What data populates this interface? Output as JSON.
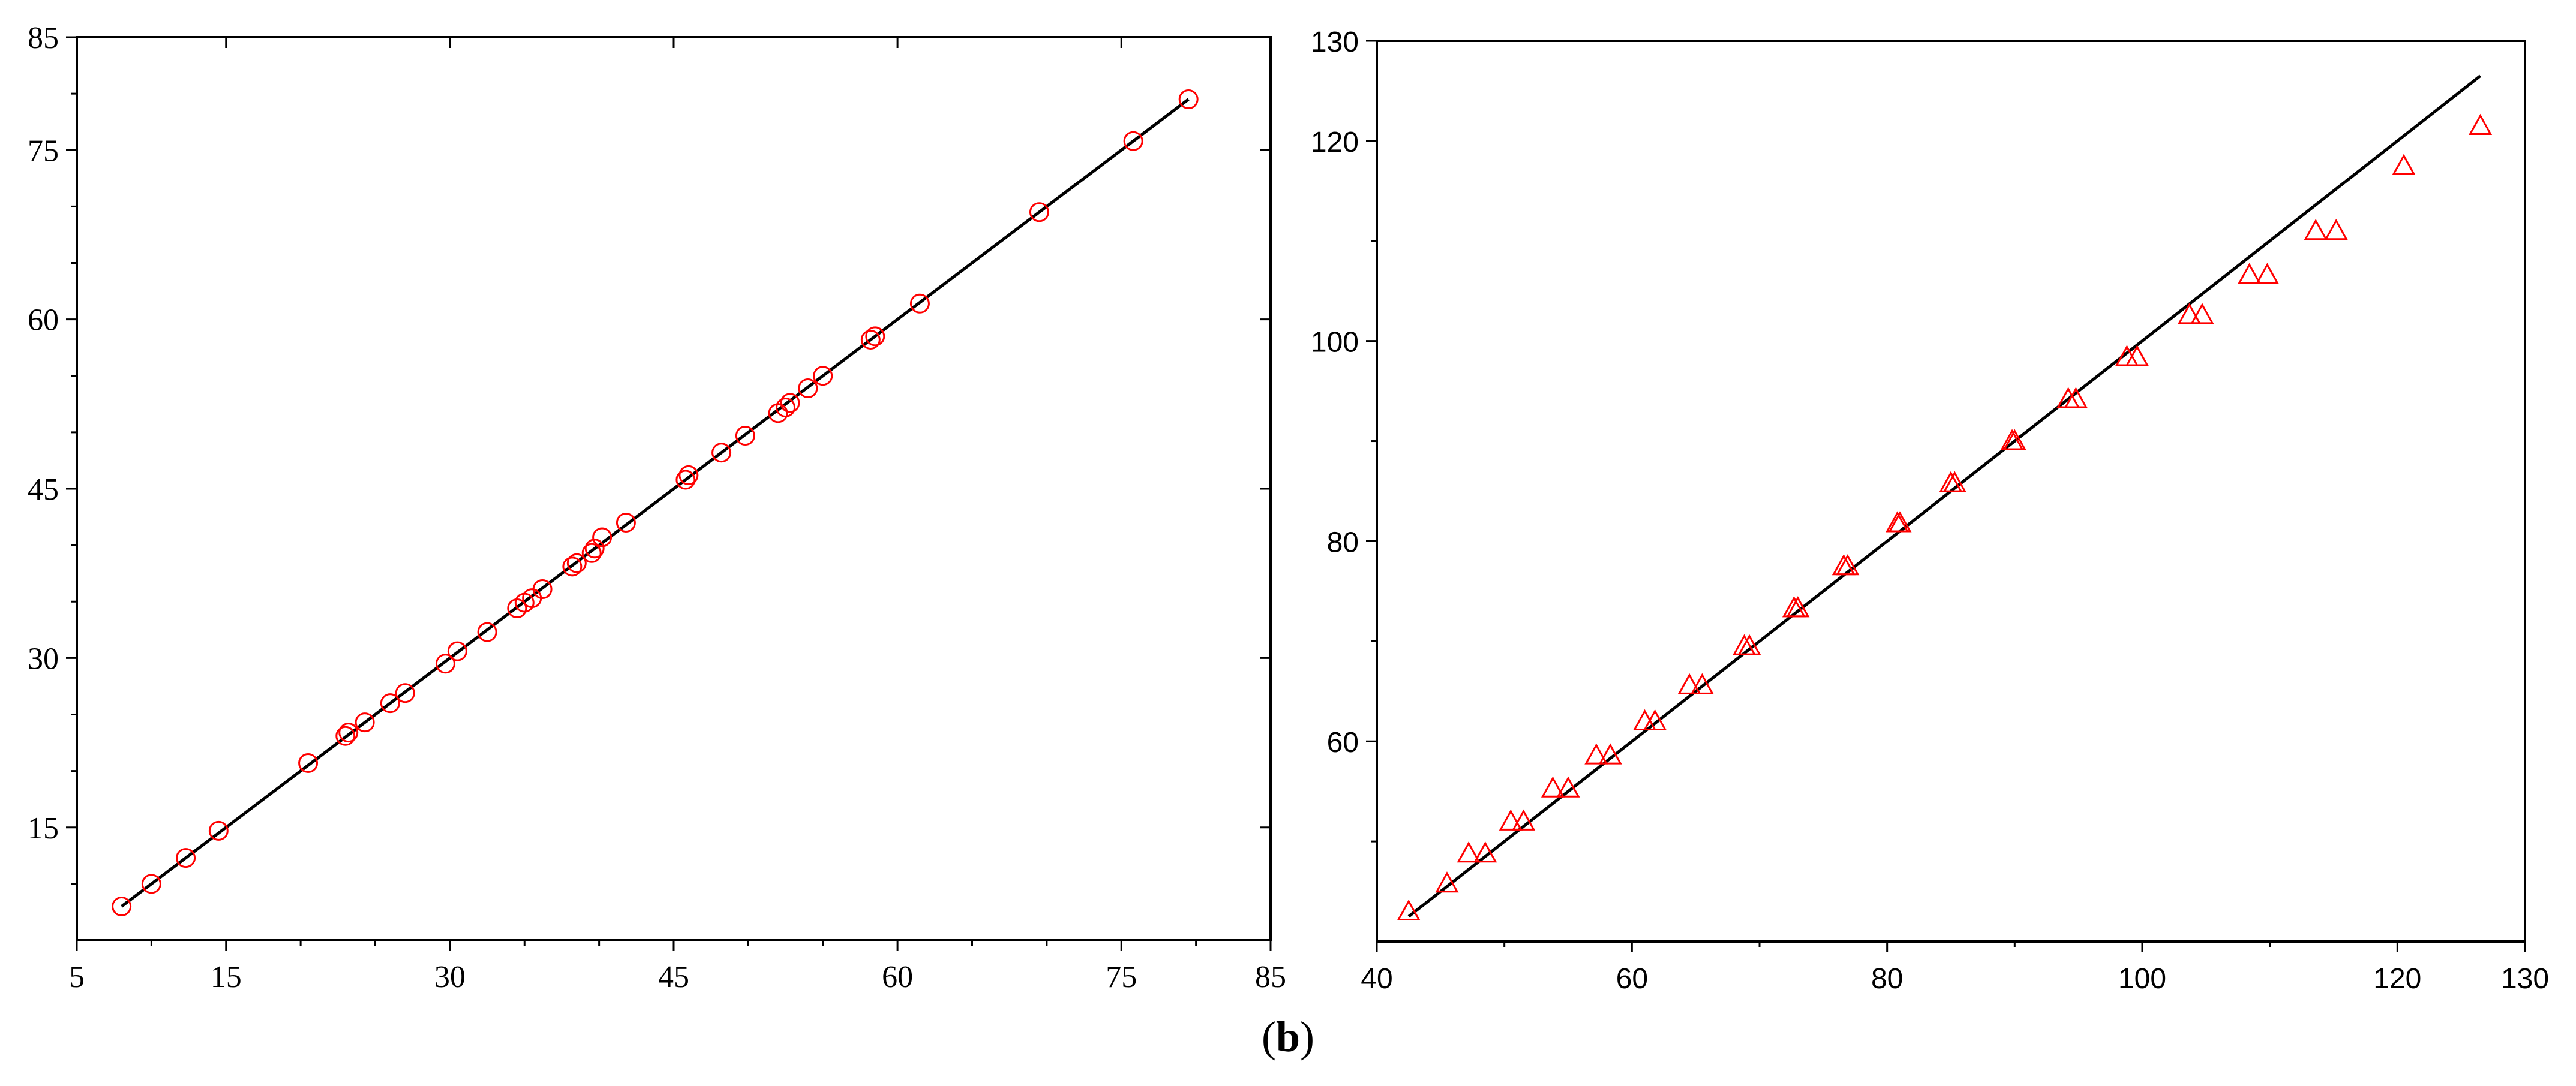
{
  "caption": {
    "open": "(",
    "letter": "b",
    "close": ")"
  },
  "colors": {
    "marker": "#ff0000",
    "fit_line": "#000000",
    "axes": "#000000"
  },
  "chart_data": [
    {
      "type": "scatter",
      "marker": "circle",
      "title": "",
      "xlabel": "",
      "ylabel": "",
      "xlim": [
        5,
        85
      ],
      "ylim": [
        5,
        85
      ],
      "x_ticks": [
        "5",
        "15",
        "30",
        "45",
        "60",
        "75",
        "85"
      ],
      "y_ticks": [
        "15",
        "30",
        "45",
        "60",
        "75",
        "85"
      ],
      "grid": false,
      "fit_line": {
        "from": [
          8,
          8
        ],
        "to": [
          79.5,
          79.5
        ]
      },
      "x": [
        8,
        10,
        12.3,
        14.5,
        20.5,
        23,
        23.2,
        24.3,
        26,
        27,
        29.7,
        30.5,
        32.5,
        34.5,
        35,
        35.5,
        36.2,
        38.2,
        38.5,
        39.5,
        39.7,
        40.2,
        41.8,
        45.8,
        46,
        48.2,
        49.8,
        52,
        52.5,
        52.8,
        54,
        55,
        58.2,
        58.5,
        61.5,
        69.5,
        75.8,
        79.5
      ],
      "y": [
        8,
        10,
        12.3,
        14.7,
        20.7,
        23.1,
        23.4,
        24.3,
        26,
        26.9,
        29.5,
        30.6,
        32.3,
        34.4,
        34.9,
        35.3,
        36.1,
        38.1,
        38.4,
        39.3,
        39.7,
        40.7,
        42,
        45.8,
        46.2,
        48.2,
        49.7,
        51.7,
        52.2,
        52.6,
        53.9,
        55,
        58.2,
        58.5,
        61.4,
        69.5,
        75.8,
        79.5
      ]
    },
    {
      "type": "scatter",
      "marker": "triangle",
      "title": "",
      "xlabel": "",
      "ylabel": "",
      "xlim": [
        40,
        130
      ],
      "ylim": [
        40,
        130
      ],
      "x_ticks": [
        "40",
        "60",
        "80",
        "100",
        "120",
        "130"
      ],
      "y_ticks": [
        "60",
        "80",
        "100",
        "120",
        "130"
      ],
      "grid": false,
      "fit_line": {
        "from": [
          42.5,
          42.5
        ],
        "to": [
          126.5,
          126.5
        ]
      },
      "x": [
        42.5,
        45.5,
        47.2,
        48.5,
        50.5,
        51.5,
        53.8,
        55,
        57.2,
        58.3,
        61,
        61.8,
        64.5,
        65.5,
        68.8,
        69.2,
        72.7,
        73,
        76.6,
        76.9,
        80.8,
        81,
        85,
        85.3,
        89.8,
        90,
        94.2,
        94.8,
        98.8,
        99.6,
        103.7,
        104.7,
        108.4,
        109.8,
        113.6,
        115.2,
        120.5,
        126.5
      ],
      "y": [
        43,
        45.8,
        48.8,
        48.8,
        52,
        52,
        55.3,
        55.3,
        58.6,
        58.6,
        62,
        62,
        65.6,
        65.6,
        69.5,
        69.5,
        73.3,
        73.3,
        77.5,
        77.5,
        81.8,
        81.8,
        85.8,
        85.8,
        90,
        90,
        94.2,
        94.2,
        98.4,
        98.4,
        102.6,
        102.6,
        106.6,
        106.6,
        111,
        111,
        117.5,
        121.5
      ]
    }
  ]
}
